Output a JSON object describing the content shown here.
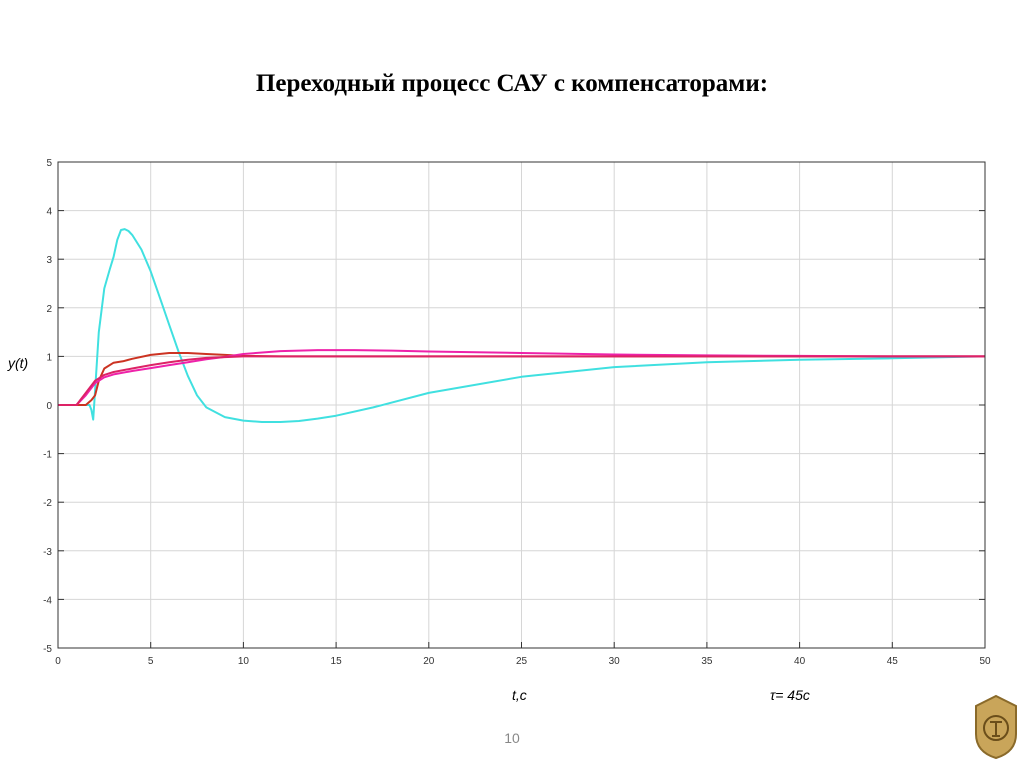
{
  "slide": {
    "title": "Переходный процесс САУ с компенсаторами:",
    "page_number": "10",
    "tau_note": "τ= 45с"
  },
  "chart_data": {
    "type": "line",
    "xlabel": "t,c",
    "ylabel": "y(t)",
    "xlim": [
      0,
      50
    ],
    "ylim": [
      -5,
      5
    ],
    "xticks": [
      0,
      5,
      10,
      15,
      20,
      25,
      30,
      35,
      40,
      45,
      50
    ],
    "yticks": [
      -5,
      -4,
      -3,
      -2,
      -1,
      0,
      1,
      2,
      3,
      4,
      5
    ],
    "grid": true,
    "series": [
      {
        "color": "#40e0e0",
        "x": [
          0,
          1,
          1.5,
          1.7,
          1.8,
          1.9,
          2.0,
          2.2,
          2.5,
          2.8,
          3.0,
          3.2,
          3.4,
          3.6,
          3.8,
          4.0,
          4.5,
          5,
          5.5,
          6,
          6.5,
          7,
          7.5,
          8,
          9,
          10,
          11,
          12,
          13,
          14,
          15,
          17,
          20,
          25,
          30,
          35,
          40,
          45,
          50
        ],
        "y": [
          0,
          0,
          0,
          0,
          -0.1,
          -0.3,
          0.3,
          1.5,
          2.4,
          2.8,
          3.05,
          3.4,
          3.6,
          3.62,
          3.58,
          3.5,
          3.2,
          2.75,
          2.2,
          1.65,
          1.1,
          0.6,
          0.2,
          -0.05,
          -0.25,
          -0.32,
          -0.35,
          -0.35,
          -0.33,
          -0.28,
          -0.22,
          -0.05,
          0.25,
          0.58,
          0.78,
          0.88,
          0.93,
          0.96,
          1.0
        ]
      },
      {
        "color": "#cc3322",
        "x": [
          0,
          1.0,
          1.5,
          1.8,
          2.0,
          2.2,
          2.5,
          3,
          3.5,
          4,
          5,
          6,
          7,
          8,
          9,
          10,
          12,
          15,
          20,
          30,
          40,
          50
        ],
        "y": [
          0,
          0,
          0,
          0.1,
          0.2,
          0.5,
          0.75,
          0.87,
          0.9,
          0.95,
          1.03,
          1.07,
          1.07,
          1.05,
          1.03,
          1.01,
          1.0,
          1.0,
          1.0,
          1.0,
          1.0,
          1.0
        ]
      },
      {
        "color": "#ee22aa",
        "x": [
          0,
          1.0,
          1.5,
          2,
          2.5,
          3,
          4,
          5,
          6,
          7,
          8,
          9,
          10,
          12,
          14,
          16,
          18,
          20,
          25,
          30,
          35,
          40,
          45,
          50
        ],
        "y": [
          0,
          0,
          0.2,
          0.45,
          0.57,
          0.63,
          0.7,
          0.76,
          0.82,
          0.88,
          0.94,
          0.99,
          1.05,
          1.11,
          1.13,
          1.13,
          1.12,
          1.1,
          1.07,
          1.04,
          1.02,
          1.01,
          1.0,
          1.0
        ]
      },
      {
        "color": "#dd2266",
        "x": [
          0,
          1.0,
          1.5,
          2,
          2.5,
          3,
          4,
          5,
          6,
          7,
          8,
          10,
          15,
          20,
          30,
          40,
          50
        ],
        "y": [
          0,
          0,
          0.25,
          0.5,
          0.62,
          0.68,
          0.75,
          0.82,
          0.88,
          0.93,
          0.97,
          1.0,
          1.0,
          1.0,
          1.0,
          1.0,
          1.0
        ]
      }
    ]
  }
}
